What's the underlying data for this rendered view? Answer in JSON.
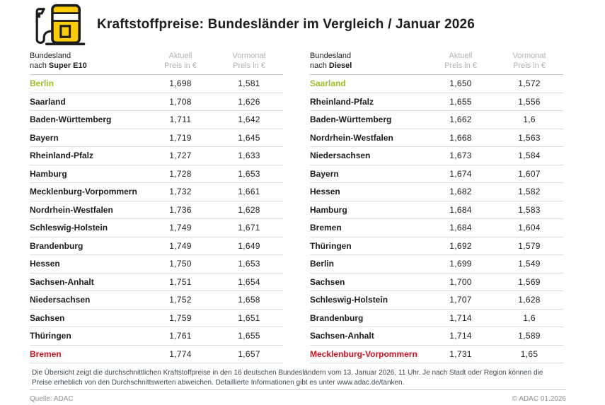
{
  "header": {
    "title": "Kraftstoffpreise: Bundesländer im Vergleich / Januar 2026",
    "icon": "fuel-pump-icon"
  },
  "colors": {
    "accent_yellow": "#FFCC00",
    "cheapest_green": "#9BBD23",
    "most_expensive_red": "#CC1422",
    "text_dark": "#1D1D1B",
    "header_gray": "#B2B2B2"
  },
  "table_headers": {
    "bundesland": "Bundesland",
    "nach": "nach",
    "aktuell": "Aktuell",
    "vormonat": "Vormonat",
    "preis": "Preis in €"
  },
  "chart_data": [
    {
      "type": "table",
      "title": "Bundesland nach Super E10",
      "fuel": "Super E10",
      "columns": [
        "Bundesland nach Super E10",
        "Aktuell Preis in €",
        "Vormonat Preis in €"
      ],
      "rows": [
        {
          "bundesland": "Berlin",
          "aktuell": "1,698",
          "vormonat": "1,581",
          "highlight": "green"
        },
        {
          "bundesland": "Saarland",
          "aktuell": "1,708",
          "vormonat": "1,626",
          "highlight": null
        },
        {
          "bundesland": "Baden-Württemberg",
          "aktuell": "1,711",
          "vormonat": "1,642",
          "highlight": null
        },
        {
          "bundesland": "Bayern",
          "aktuell": "1,719",
          "vormonat": "1,645",
          "highlight": null
        },
        {
          "bundesland": "Rheinland-Pfalz",
          "aktuell": "1,727",
          "vormonat": "1,633",
          "highlight": null
        },
        {
          "bundesland": "Hamburg",
          "aktuell": "1,728",
          "vormonat": "1,653",
          "highlight": null
        },
        {
          "bundesland": "Mecklenburg-Vorpommern",
          "aktuell": "1,732",
          "vormonat": "1,661",
          "highlight": null
        },
        {
          "bundesland": "Nordrhein-Westfalen",
          "aktuell": "1,736",
          "vormonat": "1,628",
          "highlight": null
        },
        {
          "bundesland": "Schleswig-Holstein",
          "aktuell": "1,749",
          "vormonat": "1,671",
          "highlight": null
        },
        {
          "bundesland": "Brandenburg",
          "aktuell": "1,749",
          "vormonat": "1,649",
          "highlight": null
        },
        {
          "bundesland": "Hessen",
          "aktuell": "1,750",
          "vormonat": "1,653",
          "highlight": null
        },
        {
          "bundesland": "Sachsen-Anhalt",
          "aktuell": "1,751",
          "vormonat": "1,654",
          "highlight": null
        },
        {
          "bundesland": "Niedersachsen",
          "aktuell": "1,752",
          "vormonat": "1,658",
          "highlight": null
        },
        {
          "bundesland": "Sachsen",
          "aktuell": "1,759",
          "vormonat": "1,651",
          "highlight": null
        },
        {
          "bundesland": "Thüringen",
          "aktuell": "1,761",
          "vormonat": "1,655",
          "highlight": null
        },
        {
          "bundesland": "Bremen",
          "aktuell": "1,774",
          "vormonat": "1,657",
          "highlight": "red"
        }
      ]
    },
    {
      "type": "table",
      "title": "Bundesland nach Diesel",
      "fuel": "Diesel",
      "columns": [
        "Bundesland nach Diesel",
        "Aktuell Preis in €",
        "Vormonat Preis in €"
      ],
      "rows": [
        {
          "bundesland": "Saarland",
          "aktuell": "1,650",
          "vormonat": "1,572",
          "highlight": "green"
        },
        {
          "bundesland": "Rheinland-Pfalz",
          "aktuell": "1,655",
          "vormonat": "1,556",
          "highlight": null
        },
        {
          "bundesland": "Baden-Württemberg",
          "aktuell": "1,662",
          "vormonat": "1,6",
          "highlight": null
        },
        {
          "bundesland": "Nordrhein-Westfalen",
          "aktuell": "1,668",
          "vormonat": "1,563",
          "highlight": null
        },
        {
          "bundesland": "Niedersachsen",
          "aktuell": "1,673",
          "vormonat": "1,584",
          "highlight": null
        },
        {
          "bundesland": "Bayern",
          "aktuell": "1,674",
          "vormonat": "1,607",
          "highlight": null
        },
        {
          "bundesland": "Hessen",
          "aktuell": "1,682",
          "vormonat": "1,582",
          "highlight": null
        },
        {
          "bundesland": "Hamburg",
          "aktuell": "1,684",
          "vormonat": "1,583",
          "highlight": null
        },
        {
          "bundesland": "Bremen",
          "aktuell": "1,684",
          "vormonat": "1,604",
          "highlight": null
        },
        {
          "bundesland": "Thüringen",
          "aktuell": "1,692",
          "vormonat": "1,579",
          "highlight": null
        },
        {
          "bundesland": "Berlin",
          "aktuell": "1,699",
          "vormonat": "1,549",
          "highlight": null
        },
        {
          "bundesland": "Sachsen",
          "aktuell": "1,700",
          "vormonat": "1,569",
          "highlight": null
        },
        {
          "bundesland": "Schleswig-Holstein",
          "aktuell": "1,707",
          "vormonat": "1,628",
          "highlight": null
        },
        {
          "bundesland": "Brandenburg",
          "aktuell": "1,714",
          "vormonat": "1,6",
          "highlight": null
        },
        {
          "bundesland": "Sachsen-Anhalt",
          "aktuell": "1,714",
          "vormonat": "1,589",
          "highlight": null
        },
        {
          "bundesland": "Mecklenburg-Vorpommern",
          "aktuell": "1,731",
          "vormonat": "1,65",
          "highlight": "red"
        }
      ]
    }
  ],
  "footnote": "Die Übersicht zeigt die durchschnittlichen Kraftstoffpreise in den 16 deutschen Bundesländern vom 13. Januar 2026, 11 Uhr. Je nach Stadt oder Region können die Preise erheblich von den Durchschnittswerten abweichen. Detaillierte Informationen gibt es unter www.adac.de/tanken.",
  "footer": {
    "source": "Quelle: ADAC",
    "copyright": "© ADAC 01.2026"
  }
}
